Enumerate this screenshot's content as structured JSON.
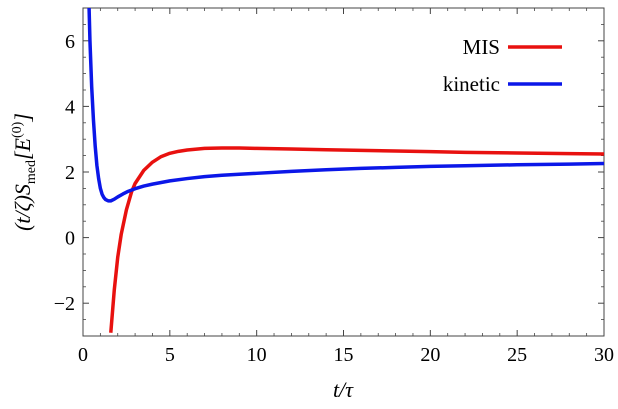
{
  "chart_data": {
    "type": "line",
    "xlim": [
      0,
      30
    ],
    "ylim": [
      -3,
      7
    ],
    "x_ticks": [
      0,
      5,
      10,
      15,
      20,
      25,
      30
    ],
    "x_tick_labels": [
      "0",
      "5",
      "10",
      "15",
      "20",
      "25",
      "30"
    ],
    "y_ticks": [
      -2,
      0,
      2,
      4,
      6
    ],
    "y_tick_labels": [
      "−2",
      "0",
      "2",
      "4",
      "6"
    ],
    "xlabel": "t/τ",
    "ylabel": "(t/ζ)S_med[E^(0)]",
    "grid": false,
    "legend_position": "top-right",
    "series": [
      {
        "name": "MIS",
        "color": "#e8110f",
        "x": [
          1.6,
          1.8,
          2.0,
          2.2,
          2.5,
          2.8,
          3.0,
          3.5,
          4.0,
          4.5,
          5.0,
          5.5,
          6.0,
          7.0,
          8.0,
          9.0,
          10.0,
          12.0,
          14.0,
          16.0,
          18.0,
          20.0,
          22.0,
          25.0,
          28.0,
          30.0
        ],
        "values": [
          -2.9,
          -1.6,
          -0.6,
          0.1,
          0.85,
          1.4,
          1.65,
          2.05,
          2.3,
          2.47,
          2.57,
          2.63,
          2.67,
          2.72,
          2.73,
          2.73,
          2.72,
          2.7,
          2.68,
          2.66,
          2.64,
          2.62,
          2.6,
          2.58,
          2.56,
          2.55
        ]
      },
      {
        "name": "kinetic",
        "color": "#0b17e8",
        "x": [
          0.35,
          0.4,
          0.5,
          0.6,
          0.7,
          0.8,
          0.9,
          1.0,
          1.1,
          1.2,
          1.3,
          1.45,
          1.6,
          1.8,
          2.0,
          2.3,
          2.6,
          3.0,
          3.5,
          4.0,
          4.5,
          5.0,
          6.0,
          7.0,
          8.0,
          9.0,
          10.0,
          12.0,
          14.0,
          16.0,
          18.0,
          20.0,
          22.0,
          25.0,
          28.0,
          30.0
        ],
        "values": [
          7.0,
          6.0,
          4.6,
          3.6,
          2.8,
          2.2,
          1.8,
          1.5,
          1.32,
          1.22,
          1.16,
          1.12,
          1.12,
          1.17,
          1.24,
          1.33,
          1.41,
          1.49,
          1.57,
          1.63,
          1.68,
          1.73,
          1.8,
          1.86,
          1.9,
          1.93,
          1.96,
          2.02,
          2.07,
          2.11,
          2.14,
          2.17,
          2.19,
          2.22,
          2.24,
          2.26
        ]
      }
    ]
  }
}
